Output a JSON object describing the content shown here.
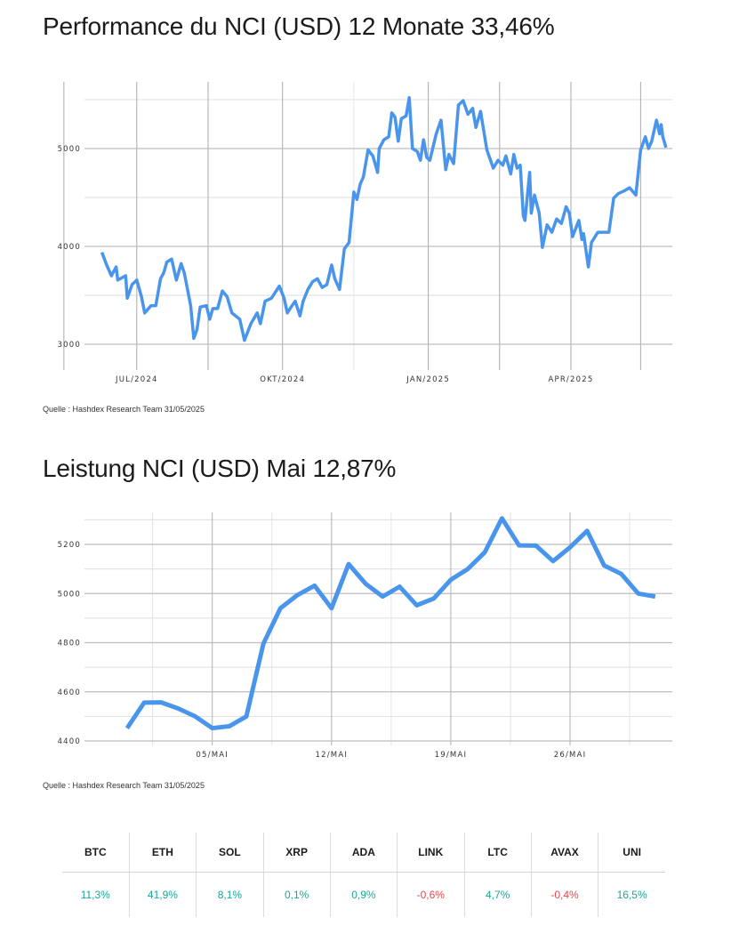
{
  "colors": {
    "line": "#4a95ec",
    "positive": "#19a899",
    "negative": "#e8474f",
    "grid": "#c8c8c8"
  },
  "chart_data": [
    {
      "type": "line",
      "title": "Performance du NCI (USD) 12 Monate 33,46%",
      "source": "Quelle : Hashdex Research Team 31/05/2025",
      "ylim": [
        2750,
        5700
      ],
      "xlim": [
        "2024-05-29",
        "2025-06-04"
      ],
      "yticks": [
        3000,
        4000,
        5000
      ],
      "ytick_labels": [
        "3000",
        "4000",
        "5000"
      ],
      "xticks": [
        "2024-07-01",
        "2024-10-01",
        "2025-01-01",
        "2025-04-01"
      ],
      "xtick_labels": [
        "JUL/2024",
        "OKT/2024",
        "JAN/2025",
        "APR/2025"
      ],
      "grid": true,
      "points": [
        [
          "2024-06-09",
          3940
        ],
        [
          "2024-06-12",
          3810
        ],
        [
          "2024-06-15",
          3700
        ],
        [
          "2024-06-18",
          3790
        ],
        [
          "2024-06-19",
          3655
        ],
        [
          "2024-06-24",
          3700
        ],
        [
          "2024-06-25",
          3470
        ],
        [
          "2024-06-28",
          3610
        ],
        [
          "2024-07-01",
          3655
        ],
        [
          "2024-07-04",
          3485
        ],
        [
          "2024-07-06",
          3320
        ],
        [
          "2024-07-10",
          3395
        ],
        [
          "2024-07-13",
          3395
        ],
        [
          "2024-07-16",
          3670
        ],
        [
          "2024-07-18",
          3730
        ],
        [
          "2024-07-20",
          3840
        ],
        [
          "2024-07-23",
          3870
        ],
        [
          "2024-07-26",
          3655
        ],
        [
          "2024-07-29",
          3825
        ],
        [
          "2024-07-31",
          3730
        ],
        [
          "2024-08-04",
          3395
        ],
        [
          "2024-08-06",
          3060
        ],
        [
          "2024-08-08",
          3150
        ],
        [
          "2024-08-10",
          3380
        ],
        [
          "2024-08-14",
          3395
        ],
        [
          "2024-08-16",
          3255
        ],
        [
          "2024-08-18",
          3365
        ],
        [
          "2024-08-21",
          3365
        ],
        [
          "2024-08-24",
          3545
        ],
        [
          "2024-08-27",
          3485
        ],
        [
          "2024-08-30",
          3320
        ],
        [
          "2024-09-04",
          3255
        ],
        [
          "2024-09-07",
          3040
        ],
        [
          "2024-09-11",
          3210
        ],
        [
          "2024-09-15",
          3320
        ],
        [
          "2024-09-17",
          3210
        ],
        [
          "2024-09-20",
          3440
        ],
        [
          "2024-09-24",
          3470
        ],
        [
          "2024-09-29",
          3595
        ],
        [
          "2024-10-02",
          3470
        ],
        [
          "2024-10-04",
          3320
        ],
        [
          "2024-10-07",
          3395
        ],
        [
          "2024-10-09",
          3440
        ],
        [
          "2024-10-12",
          3290
        ],
        [
          "2024-10-14",
          3440
        ],
        [
          "2024-10-17",
          3560
        ],
        [
          "2024-10-20",
          3640
        ],
        [
          "2024-10-23",
          3670
        ],
        [
          "2024-10-26",
          3580
        ],
        [
          "2024-10-29",
          3610
        ],
        [
          "2024-11-01",
          3810
        ],
        [
          "2024-11-03",
          3670
        ],
        [
          "2024-11-06",
          3560
        ],
        [
          "2024-11-09",
          3975
        ],
        [
          "2024-11-12",
          4040
        ],
        [
          "2024-11-15",
          4555
        ],
        [
          "2024-11-17",
          4480
        ],
        [
          "2024-11-19",
          4635
        ],
        [
          "2024-11-21",
          4710
        ],
        [
          "2024-11-24",
          4985
        ],
        [
          "2024-11-27",
          4925
        ],
        [
          "2024-11-30",
          4755
        ],
        [
          "2024-12-01",
          5000
        ],
        [
          "2024-12-04",
          5090
        ],
        [
          "2024-12-07",
          5120
        ],
        [
          "2024-12-09",
          5365
        ],
        [
          "2024-12-11",
          5320
        ],
        [
          "2024-12-13",
          5075
        ],
        [
          "2024-12-15",
          5305
        ],
        [
          "2024-12-18",
          5335
        ],
        [
          "2024-12-20",
          5520
        ],
        [
          "2024-12-22",
          5000
        ],
        [
          "2024-12-25",
          4970
        ],
        [
          "2024-12-27",
          4880
        ],
        [
          "2024-12-29",
          5090
        ],
        [
          "2024-12-31",
          4910
        ],
        [
          "2025-01-02",
          4880
        ],
        [
          "2025-01-06",
          5150
        ],
        [
          "2025-01-09",
          5290
        ],
        [
          "2025-01-12",
          4785
        ],
        [
          "2025-01-14",
          4940
        ],
        [
          "2025-01-17",
          4845
        ],
        [
          "2025-01-20",
          5445
        ],
        [
          "2025-01-23",
          5490
        ],
        [
          "2025-01-26",
          5350
        ],
        [
          "2025-01-29",
          5410
        ],
        [
          "2025-01-31",
          5215
        ],
        [
          "2025-02-03",
          5380
        ],
        [
          "2025-02-07",
          4985
        ],
        [
          "2025-02-11",
          4800
        ],
        [
          "2025-02-14",
          4880
        ],
        [
          "2025-02-17",
          4830
        ],
        [
          "2025-02-19",
          4925
        ],
        [
          "2025-02-22",
          4740
        ],
        [
          "2025-02-24",
          4940
        ],
        [
          "2025-02-26",
          4800
        ],
        [
          "2025-02-28",
          4830
        ],
        [
          "2025-03-02",
          4310
        ],
        [
          "2025-03-03",
          4265
        ],
        [
          "2025-03-06",
          4755
        ],
        [
          "2025-03-07",
          4340
        ],
        [
          "2025-03-09",
          4525
        ],
        [
          "2025-03-12",
          4340
        ],
        [
          "2025-03-14",
          3990
        ],
        [
          "2025-03-17",
          4220
        ],
        [
          "2025-03-20",
          4145
        ],
        [
          "2025-03-23",
          4280
        ],
        [
          "2025-03-26",
          4235
        ],
        [
          "2025-03-29",
          4405
        ],
        [
          "2025-03-31",
          4340
        ],
        [
          "2025-04-02",
          4100
        ],
        [
          "2025-04-06",
          4265
        ],
        [
          "2025-04-08",
          4070
        ],
        [
          "2025-04-09",
          4130
        ],
        [
          "2025-04-12",
          3790
        ],
        [
          "2025-04-14",
          4040
        ],
        [
          "2025-04-18",
          4145
        ],
        [
          "2025-04-22",
          4145
        ],
        [
          "2025-04-25",
          4145
        ],
        [
          "2025-04-28",
          4495
        ],
        [
          "2025-05-01",
          4540
        ],
        [
          "2025-05-05",
          4570
        ],
        [
          "2025-05-08",
          4600
        ],
        [
          "2025-05-12",
          4525
        ],
        [
          "2025-05-15",
          4985
        ],
        [
          "2025-05-18",
          5120
        ],
        [
          "2025-05-20",
          5000
        ],
        [
          "2025-05-22",
          5075
        ],
        [
          "2025-05-25",
          5290
        ],
        [
          "2025-05-27",
          5150
        ],
        [
          "2025-05-28",
          5245
        ],
        [
          "2025-05-29",
          5120
        ],
        [
          "2025-05-31",
          5010
        ]
      ]
    },
    {
      "type": "line",
      "title": "Leistung NCI (USD) Mai 12,87%",
      "source": "Quelle : Hashdex Research Team 31/05/2025",
      "ylim": [
        4400,
        5300
      ],
      "xlim": [
        "2025-04-27T12:00",
        "2025-06-01"
      ],
      "yticks": [
        4400,
        4600,
        4800,
        5000,
        5200
      ],
      "ytick_labels": [
        "4400",
        "4600",
        "4800",
        "5000",
        "5200"
      ],
      "xticks": [
        "2025-05-05",
        "2025-05-12",
        "2025-05-19",
        "2025-05-26"
      ],
      "xtick_labels": [
        "05/MAI",
        "12/MAI",
        "19/MAI",
        "26/MAI"
      ],
      "grid": true,
      "points": [
        [
          "2025-04-30",
          4452
        ],
        [
          "2025-05-01",
          4556
        ],
        [
          "2025-05-02",
          4557
        ],
        [
          "2025-05-03",
          4532
        ],
        [
          "2025-05-04",
          4500
        ],
        [
          "2025-05-05",
          4452
        ],
        [
          "2025-05-06",
          4460
        ],
        [
          "2025-05-07",
          4500
        ],
        [
          "2025-05-08",
          4796
        ],
        [
          "2025-05-09",
          4940
        ],
        [
          "2025-05-10",
          4994
        ],
        [
          "2025-05-11",
          5032
        ],
        [
          "2025-05-12",
          4940
        ],
        [
          "2025-05-13",
          5120
        ],
        [
          "2025-05-14",
          5040
        ],
        [
          "2025-05-15",
          4988
        ],
        [
          "2025-05-16",
          5028
        ],
        [
          "2025-05-17",
          4952
        ],
        [
          "2025-05-18",
          4980
        ],
        [
          "2025-05-19",
          5056
        ],
        [
          "2025-05-20",
          5100
        ],
        [
          "2025-05-21",
          5168
        ],
        [
          "2025-05-22",
          5306
        ],
        [
          "2025-05-23",
          5196
        ],
        [
          "2025-05-24",
          5195
        ],
        [
          "2025-05-25",
          5132
        ],
        [
          "2025-05-26",
          5188
        ],
        [
          "2025-05-27",
          5255
        ],
        [
          "2025-05-28",
          5114
        ],
        [
          "2025-05-29",
          5080
        ],
        [
          "2025-05-30",
          5000
        ],
        [
          "2025-05-31",
          4988
        ]
      ]
    }
  ],
  "table": {
    "headers": [
      "BTC",
      "ETH",
      "SOL",
      "XRP",
      "ADA",
      "LINK",
      "LTC",
      "AVAX",
      "UNI"
    ],
    "values": [
      "11,3%",
      "41,9%",
      "8,1%",
      "0,1%",
      "0,9%",
      "-0,6%",
      "4,7%",
      "-0,4%",
      "16,5%"
    ]
  }
}
